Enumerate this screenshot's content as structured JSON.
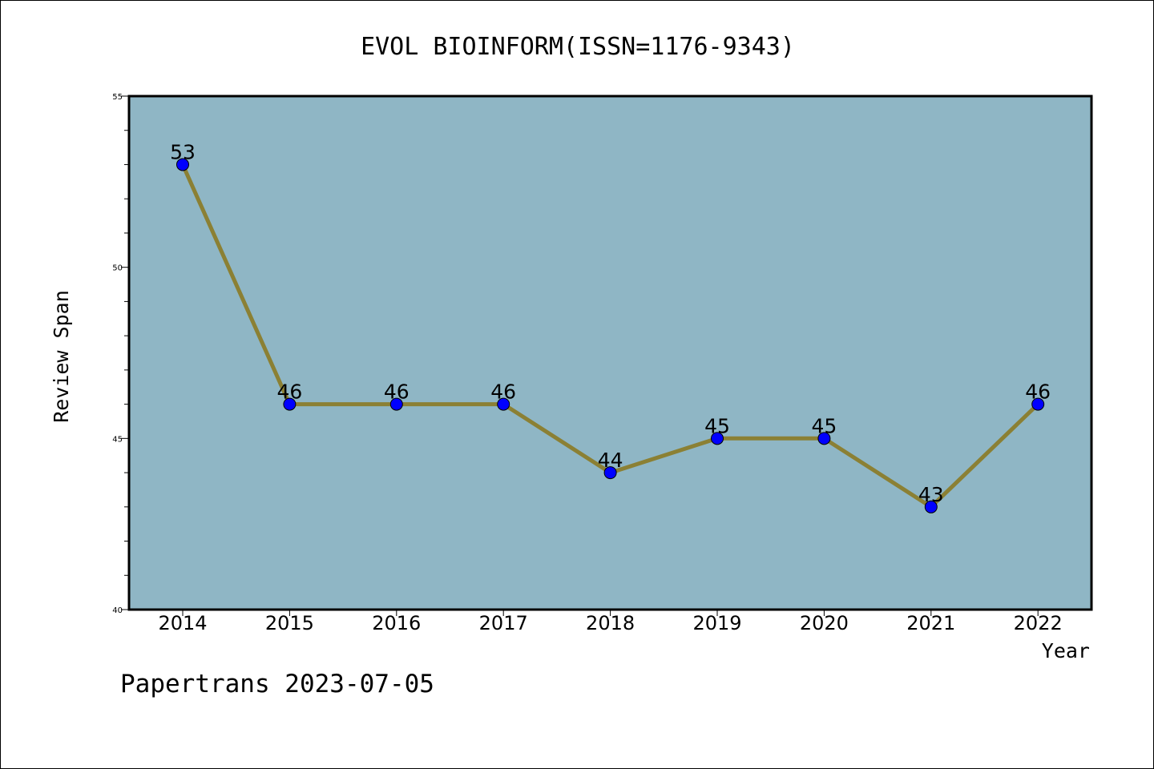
{
  "chart_data": {
    "type": "line",
    "title": "EVOL BIOINFORM(ISSN=1176-9343)",
    "xlabel": "Year",
    "ylabel": "Review Span",
    "categories": [
      "2014",
      "2015",
      "2016",
      "2017",
      "2018",
      "2019",
      "2020",
      "2021",
      "2022"
    ],
    "values": [
      53,
      46,
      46,
      46,
      44,
      45,
      45,
      43,
      46
    ],
    "ylim": [
      40,
      55
    ],
    "yticks": [
      40,
      45,
      50,
      55
    ],
    "y_minor_step": 1,
    "grid": false,
    "legend": "none",
    "colors": {
      "plot_background": "#8fb6c5",
      "line": "#8b8034",
      "marker": "#0000ff",
      "axis": "#000000"
    }
  },
  "footer": {
    "watermark": "Papertrans 2023-07-05"
  }
}
